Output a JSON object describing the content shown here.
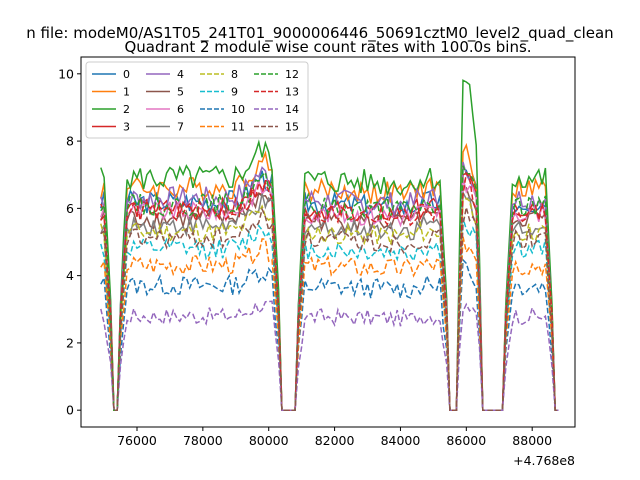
{
  "figure": {
    "suptitle": "n file: modeM0/AS1T05_241T01_9000006446_50691cztM0_level2_quad_clean",
    "title": "Quadrant 2 module wise count rates with 100.0s bins.",
    "x_offset_label": "+4.768e8"
  },
  "chart_data": {
    "type": "line",
    "title": "Quadrant 2 module wise count rates with 100.0s bins.",
    "xlabel": "",
    "ylabel": "",
    "x_offset": 476800000,
    "xlim": [
      74300,
      89300
    ],
    "ylim": [
      -0.5,
      10.5
    ],
    "xticks": [
      76000,
      78000,
      80000,
      82000,
      84000,
      86000,
      88000
    ],
    "xtick_labels": [
      "76000",
      "78000",
      "80000",
      "82000",
      "84000",
      "86000",
      "88000"
    ],
    "yticks": [
      0,
      2,
      4,
      6,
      8,
      10
    ],
    "ytick_labels": [
      "0",
      "2",
      "4",
      "6",
      "8",
      "10"
    ],
    "x_range": [
      74900,
      88800
    ],
    "bin_s": 100,
    "gaps": [
      [
        75250,
        75450
      ],
      [
        80350,
        80850
      ],
      [
        85450,
        85700
      ],
      [
        86500,
        87150
      ],
      [
        88650,
        88800
      ]
    ],
    "legend": {
      "position": "top-left",
      "columns": 4
    },
    "grid": false,
    "series": [
      {
        "name": "0",
        "color": "#1f77b4",
        "style": "solid",
        "level": 6.2,
        "amp": 0.35
      },
      {
        "name": "1",
        "color": "#ff7f0e",
        "style": "solid",
        "level": 6.6,
        "amp": 0.35
      },
      {
        "name": "2",
        "color": "#2ca02c",
        "style": "solid",
        "level": 6.9,
        "amp": 0.4
      },
      {
        "name": "3",
        "color": "#d62728",
        "style": "solid",
        "level": 6.0,
        "amp": 0.3
      },
      {
        "name": "4",
        "color": "#9467bd",
        "style": "solid",
        "level": 6.3,
        "amp": 0.35
      },
      {
        "name": "5",
        "color": "#8c564b",
        "style": "solid",
        "level": 5.7,
        "amp": 0.3
      },
      {
        "name": "6",
        "color": "#e377c2",
        "style": "solid",
        "level": 5.9,
        "amp": 0.3
      },
      {
        "name": "7",
        "color": "#7f7f7f",
        "style": "solid",
        "level": 5.5,
        "amp": 0.3
      },
      {
        "name": "8",
        "color": "#bcbd22",
        "style": "dashed",
        "level": 5.3,
        "amp": 0.3
      },
      {
        "name": "9",
        "color": "#17becf",
        "style": "dashed",
        "level": 4.8,
        "amp": 0.3
      },
      {
        "name": "10",
        "color": "#1f77b4",
        "style": "dashed",
        "level": 3.7,
        "amp": 0.3
      },
      {
        "name": "11",
        "color": "#ff7f0e",
        "style": "dashed",
        "level": 4.3,
        "amp": 0.3
      },
      {
        "name": "12",
        "color": "#2ca02c",
        "style": "dashed",
        "level": 6.1,
        "amp": 0.35
      },
      {
        "name": "13",
        "color": "#d62728",
        "style": "dashed",
        "level": 5.9,
        "amp": 0.3
      },
      {
        "name": "14",
        "color": "#9467bd",
        "style": "dashed",
        "level": 2.8,
        "amp": 0.25
      },
      {
        "name": "15",
        "color": "#8c564b",
        "style": "dashed",
        "level": 5.1,
        "amp": 0.3
      }
    ]
  }
}
